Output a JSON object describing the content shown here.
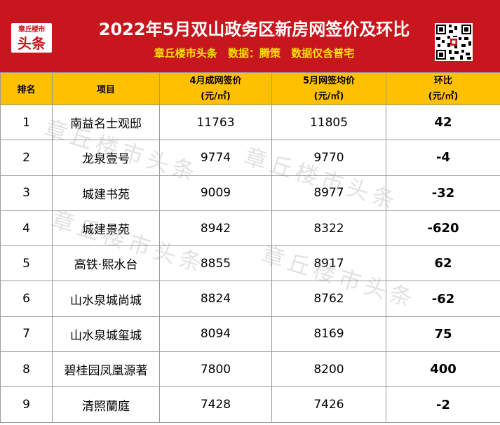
{
  "header": {
    "logo_line1": "章丘楼市",
    "logo_line2": "头条",
    "title": "2022年5月双山政务区新房网签价及环比",
    "source": "章丘楼市头条",
    "data_label": "数据：腾策",
    "note": "数据仅含普宅"
  },
  "columns": {
    "rank": "排名",
    "project": "项目",
    "april_line1": "4月成网签价",
    "april_unit": "(元/㎡)",
    "may_line1": "5月网签均价",
    "may_unit": "(元/㎡)",
    "change_line1": "环比",
    "change_unit": "(元/㎡)"
  },
  "rows": [
    {
      "rank": "1",
      "project": "南益名士观邸",
      "april": "11763",
      "may": "11805",
      "change": "42",
      "trend": "up"
    },
    {
      "rank": "2",
      "project": "龙泉壹号",
      "april": "9774",
      "may": "9770",
      "change": "-4",
      "trend": "down"
    },
    {
      "rank": "3",
      "project": "城建书苑",
      "april": "9009",
      "may": "8977",
      "change": "-32",
      "trend": "down"
    },
    {
      "rank": "4",
      "project": "城建景苑",
      "april": "8942",
      "may": "8322",
      "change": "-620",
      "trend": "down"
    },
    {
      "rank": "5",
      "project": "高铁·熙水台",
      "april": "8855",
      "may": "8917",
      "change": "62",
      "trend": "up"
    },
    {
      "rank": "6",
      "project": "山水泉城尚城",
      "april": "8824",
      "may": "8762",
      "change": "-62",
      "trend": "down"
    },
    {
      "rank": "7",
      "project": "山水泉城玺城",
      "april": "8094",
      "may": "8169",
      "change": "75",
      "trend": "up"
    },
    {
      "rank": "8",
      "project": "碧桂园凤凰源著",
      "april": "7800",
      "may": "8200",
      "change": "400",
      "trend": "up"
    },
    {
      "rank": "9",
      "project": "清照蘭庭",
      "april": "7428",
      "may": "7426",
      "change": "-2",
      "trend": "down"
    }
  ],
  "watermark": "章丘楼市头条",
  "colors": {
    "banner": "#c8161e",
    "header_row": "#ffc000",
    "increase": "#ff0000",
    "decrease": "#21a146",
    "subtitle": "#ffe300"
  }
}
